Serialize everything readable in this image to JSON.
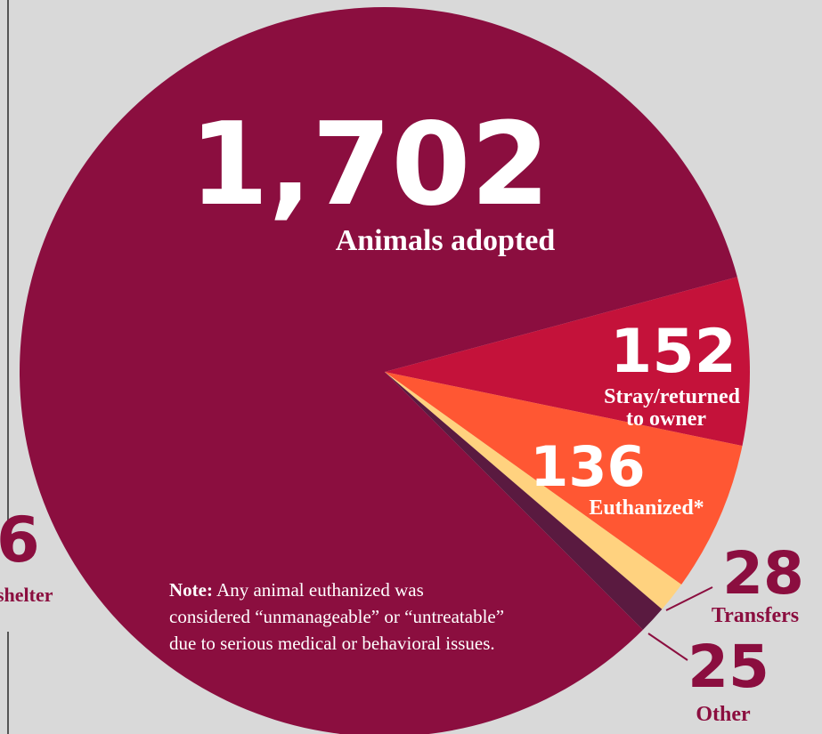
{
  "edge": {
    "partial_number": "6",
    "partial_label": "shelter"
  },
  "colors": {
    "background": "#d9d9d9",
    "adopted": "#8b0e3f",
    "stray": "#c4123a",
    "euthanized": "#ff5733",
    "transfers": "#ffd27f",
    "other": "#5a1a40",
    "label_light": "#ffffff",
    "label_dark": "#8b0e3f"
  },
  "chart_data": {
    "type": "pie",
    "slices": [
      {
        "value": "1,702",
        "label": "Animals adopted",
        "count": 1702
      },
      {
        "value": "152",
        "label": "Stray/returned to owner",
        "line1": "Stray/returned",
        "line2": "to owner",
        "count": 152
      },
      {
        "value": "136",
        "label": "Euthanized*",
        "count": 136
      },
      {
        "value": "28",
        "label": "Transfers",
        "count": 28
      },
      {
        "value": "25",
        "label": "Other",
        "count": 25
      }
    ],
    "note": {
      "lead": "Note:",
      "line1": " Any animal euthanized was",
      "line2": "considered “unmanageable” or “untreatable”",
      "line3": "due to serious medical or behavioral issues."
    }
  }
}
